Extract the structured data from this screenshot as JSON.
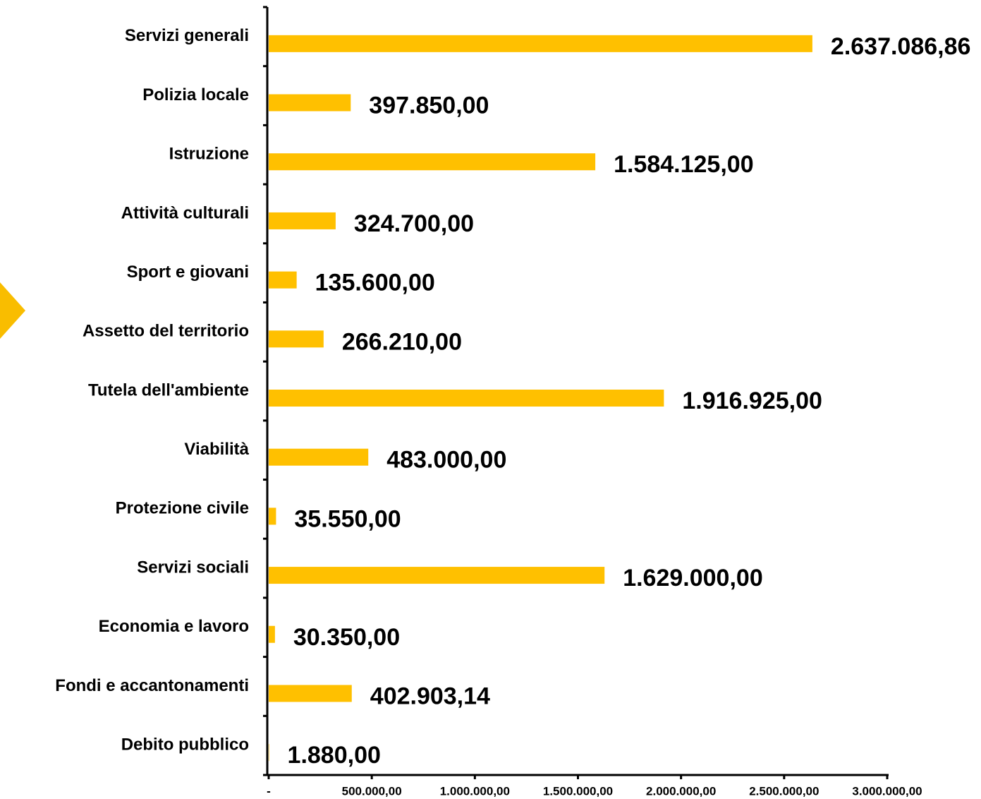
{
  "chart_data": {
    "type": "bar",
    "orientation": "horizontal",
    "categories": [
      "Servizi generali",
      "Polizia locale",
      "Istruzione",
      "Attività culturali",
      "Sport e giovani",
      "Assetto del territorio",
      "Tutela dell'ambiente",
      "Viabilità",
      "Protezione civile",
      "Servizi sociali",
      "Economia e lavoro",
      "Fondi e accantonamenti",
      "Debito pubblico"
    ],
    "values": [
      2637086.86,
      397850,
      1584125,
      324700,
      135600,
      266210,
      1916925,
      483000,
      35550,
      1629000,
      30350,
      402903.14,
      1880
    ],
    "value_labels": [
      "2.637.086,86",
      "397.850,00",
      "1.584.125,00",
      "324.700,00",
      "135.600,00",
      "266.210,00",
      "1.916.925,00",
      "483.000,00",
      "35.550,00",
      "1.629.000,00",
      "30.350,00",
      "402.903,14",
      "1.880,00"
    ],
    "color": "#ffc000",
    "xlim": [
      0,
      3000000
    ],
    "xticks": [
      {
        "value": 0,
        "label": "-"
      },
      {
        "value": 500000,
        "label": "500.000,00"
      },
      {
        "value": 1000000,
        "label": "1.000.000,00"
      },
      {
        "value": 1500000,
        "label": "1.500.000,00"
      },
      {
        "value": 2000000,
        "label": "2.000.000,00"
      },
      {
        "value": 2500000,
        "label": "2.500.000,00"
      },
      {
        "value": 3000000,
        "label": "3.000.000,00"
      }
    ],
    "grid": false
  }
}
